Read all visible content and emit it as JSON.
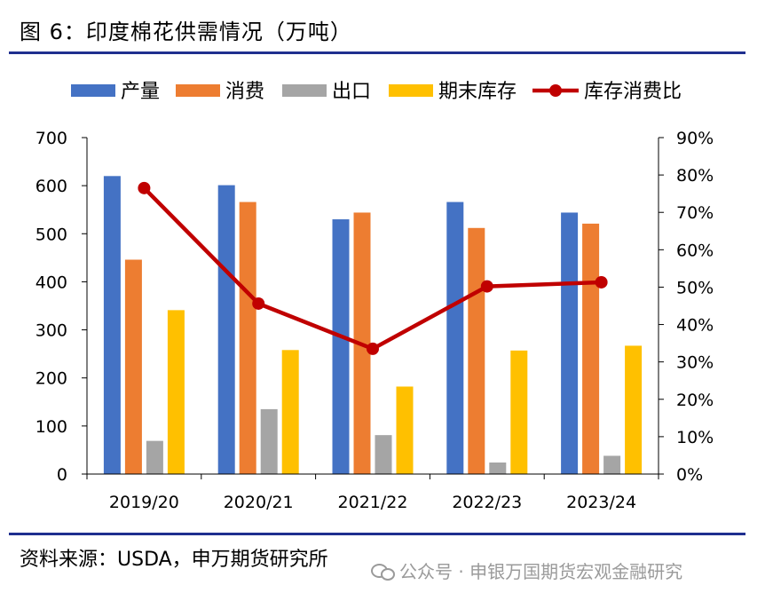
{
  "figure": {
    "title": "图 6：印度棉花供需情况（万吨）",
    "source": "资料来源：USDA，申万期货研究所",
    "watermark": "公众号 · 申银万国期货宏观金融研究",
    "watermark_icon": "wechat-icon"
  },
  "chart_data": {
    "type": "bar",
    "categories": [
      "2019/20",
      "2020/21",
      "2021/22",
      "2022/23",
      "2023/24"
    ],
    "series": [
      {
        "name": "产量",
        "kind": "bar",
        "axis": "left",
        "color": "#4472C4",
        "values": [
          620,
          601,
          530,
          566,
          544
        ]
      },
      {
        "name": "消费",
        "kind": "bar",
        "axis": "left",
        "color": "#ED7D31",
        "values": [
          446,
          566,
          544,
          512,
          521
        ]
      },
      {
        "name": "出口",
        "kind": "bar",
        "axis": "left",
        "color": "#A5A5A5",
        "values": [
          69,
          135,
          81,
          24,
          38
        ]
      },
      {
        "name": "期末库存",
        "kind": "bar",
        "axis": "left",
        "color": "#FFC000",
        "values": [
          341,
          258,
          182,
          257,
          267
        ]
      },
      {
        "name": "库存消费比",
        "kind": "line",
        "axis": "right",
        "color": "#C00000",
        "values": [
          0.765,
          0.456,
          0.335,
          0.502,
          0.513
        ]
      }
    ],
    "y_left": {
      "min": 0,
      "max": 700,
      "ticks": [
        "0",
        "100",
        "200",
        "300",
        "400",
        "500",
        "600",
        "700"
      ]
    },
    "y_right": {
      "min": 0,
      "max": 0.9,
      "ticks": [
        "0%",
        "10%",
        "20%",
        "30%",
        "40%",
        "50%",
        "60%",
        "70%",
        "80%",
        "90%"
      ]
    },
    "legend_position": "top",
    "grid": false
  }
}
